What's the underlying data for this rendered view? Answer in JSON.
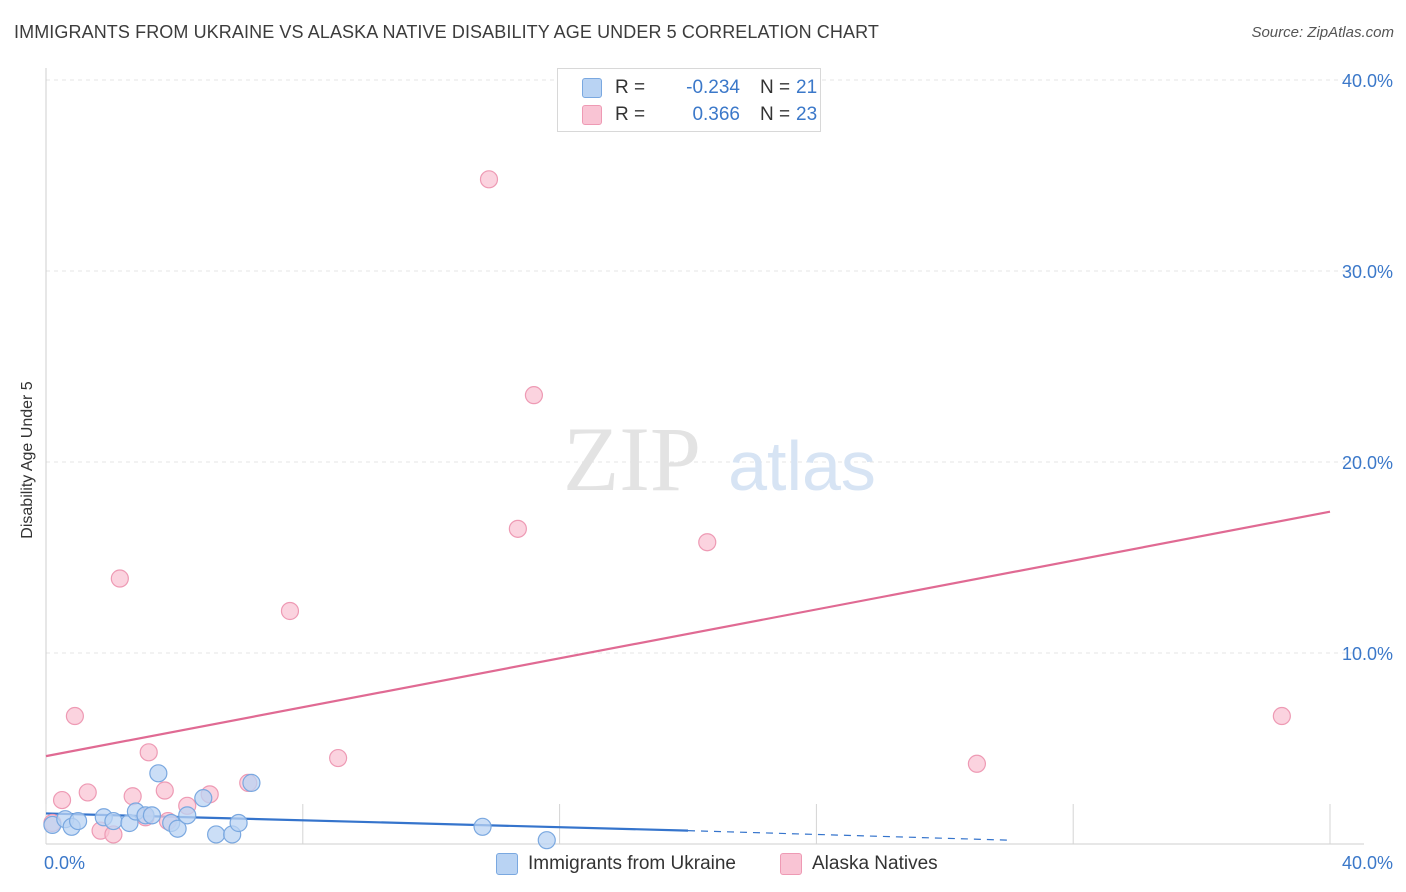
{
  "title": "IMMIGRANTS FROM UKRAINE VS ALASKA NATIVE DISABILITY AGE UNDER 5 CORRELATION CHART",
  "source": "Source: ZipAtlas.com",
  "watermark": {
    "zip": "ZIP",
    "atlas": "atlas"
  },
  "legend": {
    "r_label": "R =",
    "n_label": "N =",
    "rows": [
      {
        "r": "-0.234",
        "n": "21",
        "fill": "#b9d3f3",
        "stroke": "#7aa8e0"
      },
      {
        "r": "0.366",
        "n": "23",
        "fill": "#f9c4d4",
        "stroke": "#ee9ab4"
      }
    ]
  },
  "chart_data": {
    "type": "scatter",
    "ylabel": "Disability Age Under 5",
    "xlim": [
      0,
      40
    ],
    "ylim": [
      0,
      40
    ],
    "x_tick_labels": [
      "0.0%",
      "40.0%"
    ],
    "y_tick_labels": [
      "10.0%",
      "20.0%",
      "30.0%",
      "40.0%"
    ],
    "y_ticks": [
      10,
      20,
      30,
      40
    ],
    "colors": {
      "blue": "#3574cc",
      "pink": "#e06a93",
      "tick": "#3b78c9"
    },
    "series": [
      {
        "name": "Immigrants from Ukraine",
        "color": "#7aa8e0",
        "fill": "#b9d3f3",
        "points": [
          [
            0.2,
            1.0
          ],
          [
            0.6,
            1.3
          ],
          [
            0.8,
            0.9
          ],
          [
            1.0,
            1.2
          ],
          [
            1.8,
            1.4
          ],
          [
            2.1,
            1.2
          ],
          [
            2.6,
            1.1
          ],
          [
            2.8,
            1.7
          ],
          [
            3.1,
            1.5
          ],
          [
            3.3,
            1.5
          ],
          [
            3.5,
            3.7
          ],
          [
            3.9,
            1.1
          ],
          [
            4.1,
            0.8
          ],
          [
            4.4,
            1.5
          ],
          [
            4.9,
            2.4
          ],
          [
            5.3,
            0.5
          ],
          [
            5.8,
            0.5
          ],
          [
            6.0,
            1.1
          ],
          [
            6.4,
            3.2
          ],
          [
            13.6,
            0.9
          ],
          [
            15.6,
            0.2
          ]
        ],
        "trend": {
          "x0": 0,
          "y0": 1.6,
          "x1": 20,
          "y1": 0.7,
          "dash_x1": 30,
          "dash_y1": 0.2
        }
      },
      {
        "name": "Alaska Natives",
        "color": "#ee9ab4",
        "fill": "#f9c4d4",
        "points": [
          [
            0.5,
            2.3
          ],
          [
            0.9,
            6.7
          ],
          [
            1.3,
            2.7
          ],
          [
            1.7,
            0.7
          ],
          [
            2.1,
            0.5
          ],
          [
            2.3,
            13.9
          ],
          [
            2.7,
            2.5
          ],
          [
            3.1,
            1.4
          ],
          [
            3.2,
            4.8
          ],
          [
            3.7,
            2.8
          ],
          [
            3.8,
            1.2
          ],
          [
            4.4,
            2.0
          ],
          [
            5.1,
            2.6
          ],
          [
            6.3,
            3.2
          ],
          [
            7.6,
            12.2
          ],
          [
            9.1,
            4.5
          ],
          [
            13.8,
            34.8
          ],
          [
            14.7,
            16.5
          ],
          [
            15.2,
            23.5
          ],
          [
            20.6,
            15.8
          ],
          [
            29.0,
            4.2
          ],
          [
            38.5,
            6.7
          ],
          [
            0.2,
            1.1
          ]
        ],
        "trend": {
          "x0": 0,
          "y0": 4.6,
          "x1": 40,
          "y1": 17.4
        }
      }
    ]
  }
}
